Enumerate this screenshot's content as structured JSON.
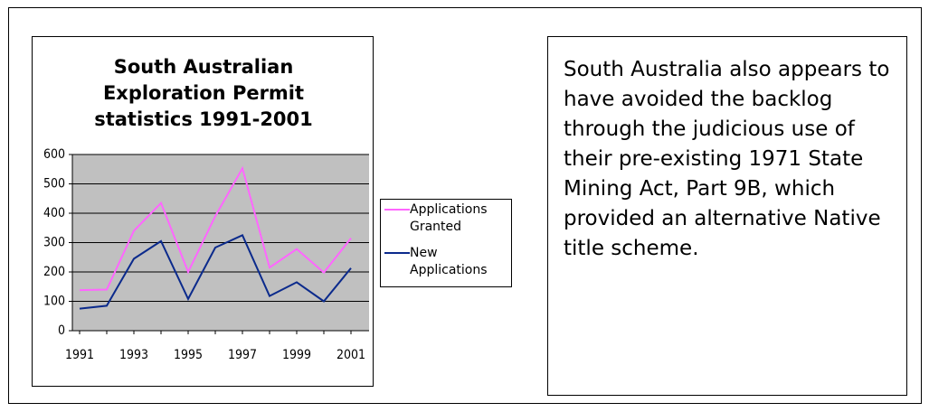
{
  "chart_data": {
    "type": "line",
    "title": "South Australian Exploration Permit statistics 1991-2001",
    "categories": [
      "1991",
      null,
      "1993",
      null,
      "1995",
      null,
      "1997",
      null,
      "1999",
      null,
      "2001"
    ],
    "series": [
      {
        "name": "Applications Granted",
        "color": "#ff66ff",
        "values": [
          138,
          140,
          340,
          435,
          200,
          390,
          553,
          215,
          278,
          198,
          315
        ]
      },
      {
        "name": "New Applications",
        "color": "#0b2a8c",
        "values": [
          75,
          85,
          245,
          305,
          108,
          283,
          325,
          118,
          165,
          100,
          213
        ]
      }
    ],
    "ylim": [
      0,
      600
    ],
    "yticks": [
      0,
      100,
      200,
      300,
      400,
      500,
      600
    ],
    "grid": true,
    "legend": "right"
  },
  "text": "South Australia also appears to have avoided the backlog through the judicious use of their pre-existing 1971 State Mining Act, Part 9B, which provided an alternative Native title scheme."
}
